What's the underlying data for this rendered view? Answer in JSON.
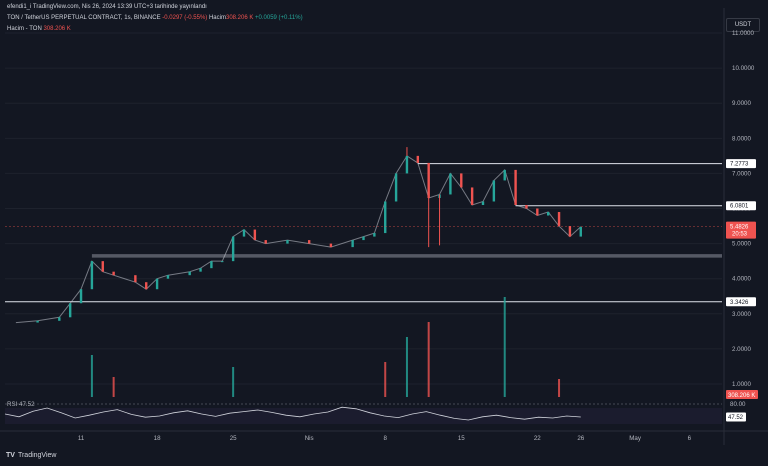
{
  "header": {
    "published": "efendi1_i TradingView.com, Nis 26, 2024 13:39 UTC+3 tarihinde yayınlandı",
    "symbol": "TON / TetherUS PERPETUAL CONTRACT, 1s, BINANCE",
    "change": "-0.0297 (-0.55%)",
    "volume_label": "Hacim",
    "volume_value": "308.206 K",
    "volume_change": "+0.0059 (+0.11%)",
    "volume_ton_label": "Hacim - TON",
    "volume_ton_value": "308.206 K"
  },
  "currency_button": "USDT",
  "brand": "TradingView",
  "colors": {
    "up": "#26a69a",
    "down": "#ef5350",
    "background": "#131722",
    "rsi": "#d1d4dc"
  },
  "chart_data": {
    "type": "candlestick",
    "y_ticks": [
      "11.0000",
      "10.0000",
      "9.0000",
      "8.0000",
      "7.0000",
      "6.0000",
      "5.0000",
      "4.0000",
      "3.0000",
      "2.0000",
      "1.0000"
    ],
    "ylim": [
      0.6,
      11.6
    ],
    "x_ticks": [
      "11",
      "18",
      "25",
      "Nis",
      "8",
      "15",
      "22",
      "26",
      "May",
      "6"
    ],
    "price_series": [
      {
        "x": "Mar 05",
        "close": 2.75
      },
      {
        "x": "Mar 07",
        "close": 2.8
      },
      {
        "x": "Mar 09",
        "close": 2.9
      },
      {
        "x": "Mar 10",
        "close": 3.3
      },
      {
        "x": "Mar 11",
        "close": 3.7
      },
      {
        "x": "Mar 12",
        "close": 4.5
      },
      {
        "x": "Mar 13",
        "close": 4.2
      },
      {
        "x": "Mar 14",
        "close": 4.1
      },
      {
        "x": "Mar 16",
        "close": 3.9
      },
      {
        "x": "Mar 17",
        "close": 3.7
      },
      {
        "x": "Mar 18",
        "close": 4.0
      },
      {
        "x": "Mar 19",
        "close": 4.1
      },
      {
        "x": "Mar 21",
        "close": 4.2
      },
      {
        "x": "Mar 22",
        "close": 4.3
      },
      {
        "x": "Mar 23",
        "close": 4.5
      },
      {
        "x": "Mar 24",
        "close": 4.5
      },
      {
        "x": "Mar 25",
        "close": 5.2
      },
      {
        "x": "Mar 26",
        "close": 5.4
      },
      {
        "x": "Mar 27",
        "close": 5.1
      },
      {
        "x": "Mar 28",
        "close": 5.0
      },
      {
        "x": "Mar 30",
        "close": 5.1
      },
      {
        "x": "Apr 01",
        "close": 5.0
      },
      {
        "x": "Apr 03",
        "close": 4.9
      },
      {
        "x": "Apr 05",
        "close": 5.1
      },
      {
        "x": "Apr 06",
        "close": 5.2
      },
      {
        "x": "Apr 07",
        "close": 5.3
      },
      {
        "x": "Apr 08",
        "close": 6.2
      },
      {
        "x": "Apr 09",
        "close": 7.0
      },
      {
        "x": "Apr 10",
        "close": 7.5
      },
      {
        "x": "Apr 11",
        "close": 7.3
      },
      {
        "x": "Apr 12",
        "close": 6.3
      },
      {
        "x": "Apr 13",
        "close": 6.4
      },
      {
        "x": "Apr 14",
        "close": 7.0
      },
      {
        "x": "Apr 15",
        "close": 6.6
      },
      {
        "x": "Apr 16",
        "close": 6.1
      },
      {
        "x": "Apr 17",
        "close": 6.2
      },
      {
        "x": "Apr 18",
        "close": 6.8
      },
      {
        "x": "Apr 19",
        "close": 7.1
      },
      {
        "x": "Apr 20",
        "close": 6.1
      },
      {
        "x": "Apr 21",
        "close": 6.0
      },
      {
        "x": "Apr 22",
        "close": 5.8
      },
      {
        "x": "Apr 23",
        "close": 5.9
      },
      {
        "x": "Apr 24",
        "close": 5.5
      },
      {
        "x": "Apr 25",
        "close": 5.2
      },
      {
        "x": "Apr 26",
        "close": 5.48
      }
    ],
    "wicks": [
      {
        "x": "Apr 12",
        "low": 4.9
      },
      {
        "x": "Apr 13",
        "low": 4.95
      },
      {
        "x": "Apr 10",
        "high": 7.75
      }
    ],
    "horizontal_levels": [
      {
        "label": "7.2773",
        "value": 7.2773
      },
      {
        "label": "6.0801",
        "value": 6.0801
      },
      {
        "label": "3.3426",
        "value": 3.3426
      }
    ],
    "support_zone": [
      4.6,
      4.7
    ],
    "current_price": {
      "label": "5.4826",
      "value": 5.4826,
      "countdown": "20:53"
    },
    "volume_badge": "308.206 K",
    "volume_bars": [
      {
        "x": "Mar 12",
        "value": 0.42
      },
      {
        "x": "Mar 14",
        "value": 0.2
      },
      {
        "x": "Mar 25",
        "value": 0.3
      },
      {
        "x": "Apr 08",
        "value": 0.35
      },
      {
        "x": "Apr 10",
        "value": 0.6
      },
      {
        "x": "Apr 12",
        "value": 0.75
      },
      {
        "x": "Apr 19",
        "value": 1.0
      },
      {
        "x": "Apr 24",
        "value": 0.18
      }
    ],
    "rsi": {
      "label": "RSI",
      "value": "47.52",
      "upper_band": "80.00",
      "series": [
        55,
        48,
        62,
        70,
        58,
        45,
        52,
        60,
        66,
        54,
        47,
        50,
        58,
        63,
        55,
        49,
        57,
        61,
        65,
        59,
        52,
        48,
        55,
        60,
        72,
        68,
        58,
        50,
        46,
        55,
        61,
        52,
        44,
        40,
        48,
        52,
        46,
        42,
        47,
        45,
        50,
        47.52
      ]
    }
  }
}
